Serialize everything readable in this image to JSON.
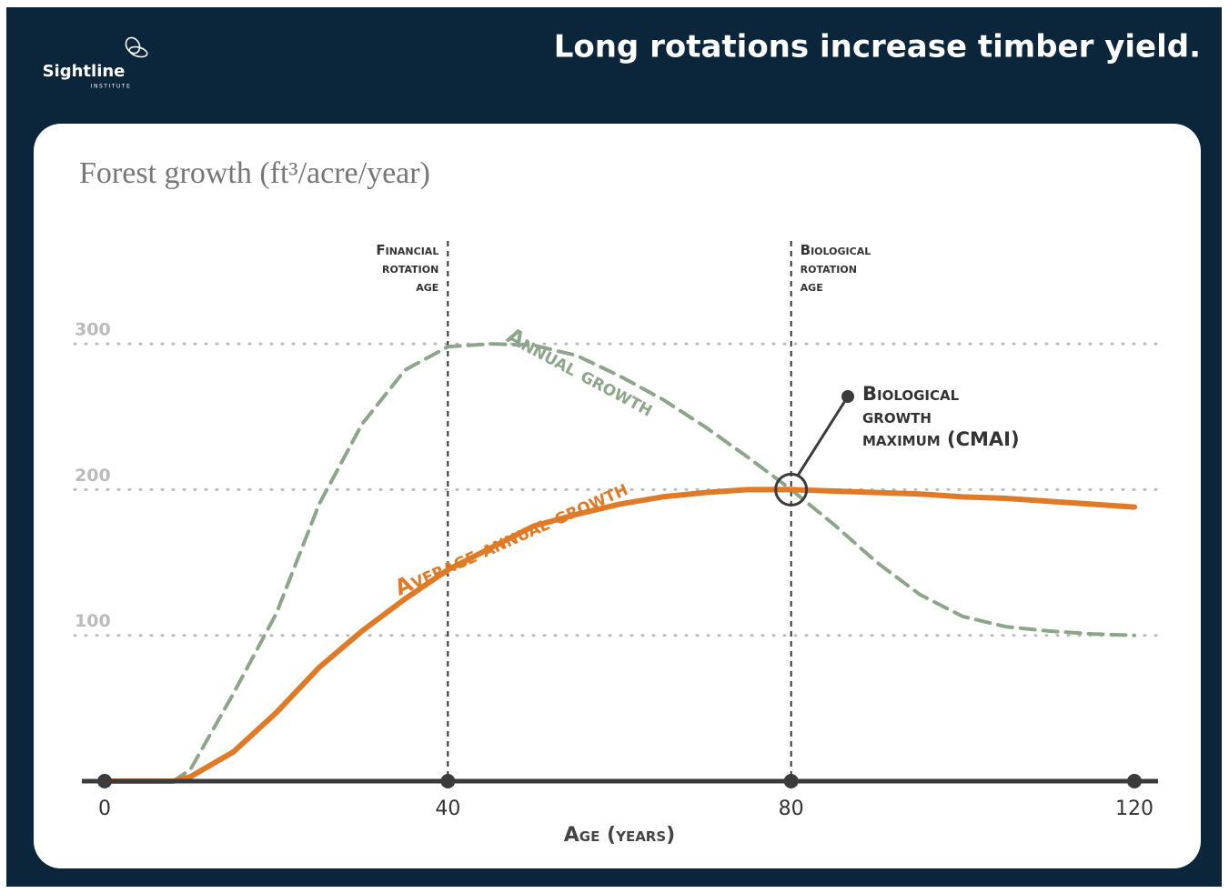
{
  "brand": {
    "name": "Sightline",
    "sub": "INSTITUTE"
  },
  "header": {
    "title": "Long rotations increase timber yield."
  },
  "chart_data": {
    "type": "line",
    "title": "Forest growth (ft³/acre/year)",
    "x_label": "Age (years)",
    "x": [
      0,
      5,
      8,
      10,
      15,
      20,
      25,
      30,
      35,
      40,
      45,
      50,
      55,
      60,
      65,
      70,
      75,
      80,
      85,
      90,
      95,
      100,
      105,
      110,
      115,
      120
    ],
    "series": [
      {
        "name": "Annual growth",
        "color": "#8da58a",
        "dashed": true,
        "values": [
          0,
          0,
          0,
          8,
          60,
          115,
          190,
          245,
          282,
          298,
          300,
          299,
          292,
          278,
          262,
          243,
          222,
          200,
          176,
          150,
          128,
          113,
          106,
          103,
          101,
          100
        ]
      },
      {
        "name": "Average annual growth",
        "color": "#e07a26",
        "dashed": false,
        "values": [
          0,
          0,
          0,
          3,
          20,
          47,
          78,
          103,
          125,
          145,
          160,
          175,
          183,
          190,
          195,
          198,
          200,
          200,
          199,
          198,
          197,
          195,
          194,
          192,
          190,
          188
        ]
      }
    ],
    "xlim": [
      0,
      120
    ],
    "xticks": [
      0,
      40,
      80,
      120
    ],
    "ylim": [
      0,
      330
    ],
    "yticks": [
      100,
      200,
      300
    ],
    "grid": true,
    "vlines": [
      {
        "x": 40,
        "label": [
          "Financial",
          "rotation",
          "age"
        ]
      },
      {
        "x": 80,
        "label": [
          "Biological",
          "rotation",
          "age"
        ]
      }
    ],
    "marker": {
      "x": 80,
      "y": 200,
      "label": [
        "Biological",
        "growth",
        "maximum (CMAI)"
      ]
    }
  }
}
